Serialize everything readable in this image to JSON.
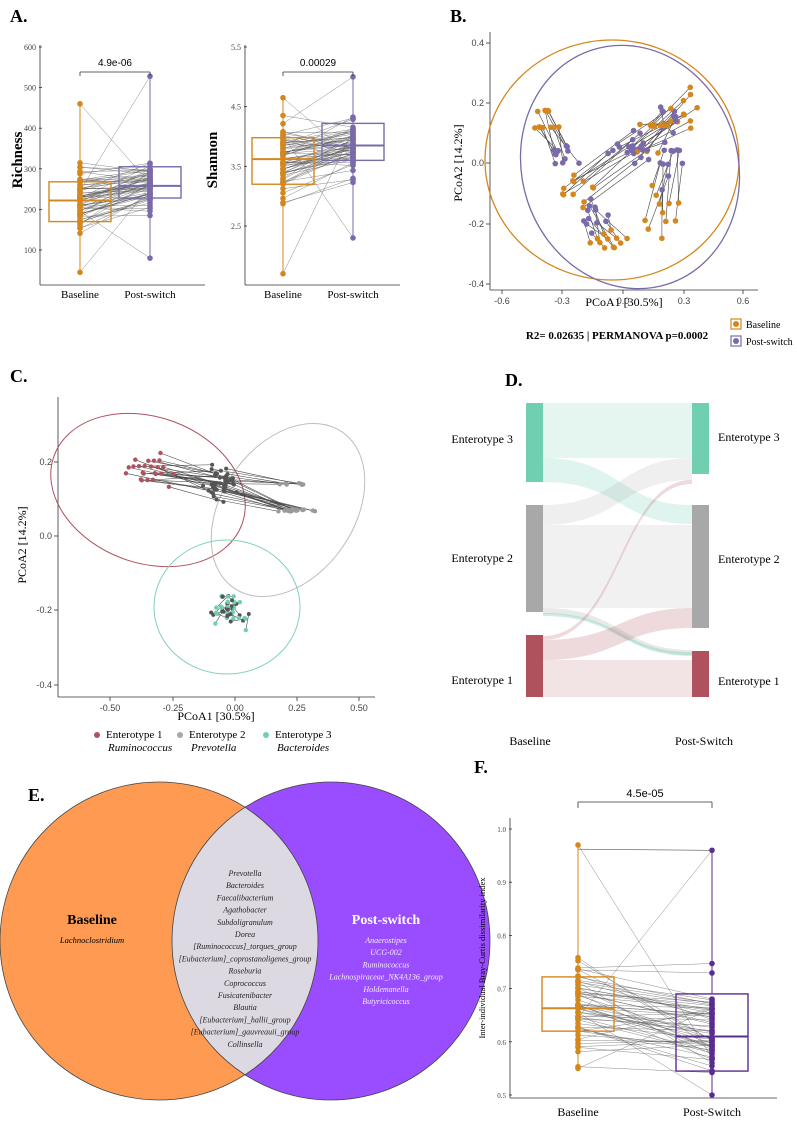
{
  "colors": {
    "baseline": "#d4871c",
    "postswitch": "#7a6aaa",
    "postswitch_dark": "#5b2c8f",
    "ent1": "#b0525e",
    "ent2": "#a8a8a8",
    "ent3": "#6fcfb0",
    "venn_left": "#ff9a52",
    "venn_right": "#9a4dff",
    "venn_overlap": "#ddd9e2"
  },
  "panelA": {
    "label": "A.",
    "richness": {
      "ylabel": "Richness",
      "yticks": [
        "600",
        "500",
        "400",
        "300",
        "200",
        "100"
      ],
      "pvalue": "4.9e-06",
      "xticks": [
        "Baseline",
        "Post-switch"
      ],
      "baseline_box": {
        "q1": 170,
        "median": 222,
        "q3": 268,
        "min": 45,
        "max": 460
      },
      "postswitch_box": {
        "q1": 228,
        "median": 258,
        "q3": 305,
        "min": 80,
        "max": 528
      }
    },
    "shannon": {
      "ylabel": "Shannon",
      "yticks": [
        "5.5",
        "4.5",
        "3.5",
        "2.5"
      ],
      "pvalue": "0.00029",
      "xticks": [
        "Baseline",
        "Post-switch"
      ],
      "baseline_box": {
        "q1": 3.2,
        "median": 3.62,
        "q3": 3.98,
        "min": 1.7,
        "max": 4.65
      },
      "postswitch_box": {
        "q1": 3.6,
        "median": 3.85,
        "q3": 4.22,
        "min": 2.3,
        "max": 5.0
      }
    }
  },
  "panelB": {
    "label": "B.",
    "xlabel": "PCoA1 [30.5%]",
    "ylabel": "PCoA2 [14.2%]",
    "xticks": [
      "-0.6",
      "-0.3",
      "0.0",
      "0.3",
      "0.6"
    ],
    "yticks": [
      "0.4",
      "0.2",
      "0.0",
      "-0.2",
      "-0.4"
    ],
    "stat": "R2= 0.02635 | PERMANOVA p=0.0002",
    "legend": [
      "Baseline",
      "Post-switch"
    ]
  },
  "panelC": {
    "label": "C.",
    "xlabel": "PCoA1 [30.5%]",
    "ylabel": "PCoA2 [14.2%]",
    "xticks": [
      "-0.50",
      "-0.25",
      "0.00",
      "0.25",
      "0.50"
    ],
    "yticks": [
      "0.2",
      "0.0",
      "-0.2",
      "-0.4"
    ],
    "legend": [
      {
        "name": "Enterotype 1",
        "genus": "Ruminococcus"
      },
      {
        "name": "Enterotype 2",
        "genus": "Prevotella"
      },
      {
        "name": "Enterotype 3",
        "genus": "Bacteroides"
      }
    ]
  },
  "panelD": {
    "label": "D.",
    "left": [
      "Enterotype 3",
      "Enterotype 2",
      "Enterotype 1"
    ],
    "right": [
      "Enterotype 3",
      "Enterotype 2",
      "Enterotype 1"
    ],
    "xleft": "Baseline",
    "xright": "Post-Switch"
  },
  "panelE": {
    "label": "E.",
    "left_title": "Baseline",
    "right_title": "Post-switch",
    "left_only": [
      "Lachnoclostridium"
    ],
    "shared": [
      "Prevotella",
      "Bacteroides",
      "Faecalibacterium",
      "Agathobacter",
      "Subdoligranulum",
      "Dorea",
      "[Ruminococcus]_torques_group",
      "[Eubacterium]_coprostanoligenes_group",
      "Roseburia",
      "Coprococcus",
      "Fusicatenibacter",
      "Blautia",
      "[Eubacterium]_hallii_group",
      "[Eubacterium]_gauvreauii_group",
      "Collinsella"
    ],
    "right_only": [
      "Anaerostipes",
      "UCG-002",
      "Ruminococcus",
      "Lachnospiraceae_NK4A136_group",
      "Holdemanella",
      "Butyricicoccus"
    ]
  },
  "panelF": {
    "label": "F.",
    "ylabel": "Inter-individual Bray-Curtis dissimilarity index",
    "yticks": [
      "1.0",
      "0.9",
      "0.8",
      "0.7",
      "0.6",
      "0.5"
    ],
    "pvalue": "4.5e-05",
    "xticks": [
      "Baseline",
      "Post-Switch"
    ],
    "baseline_box": {
      "q1": 0.62,
      "median": 0.663,
      "q3": 0.722,
      "min": 0.55,
      "max": 0.97
    },
    "postswitch_box": {
      "q1": 0.545,
      "median": 0.61,
      "q3": 0.69,
      "min": 0.5,
      "max": 0.96
    }
  }
}
